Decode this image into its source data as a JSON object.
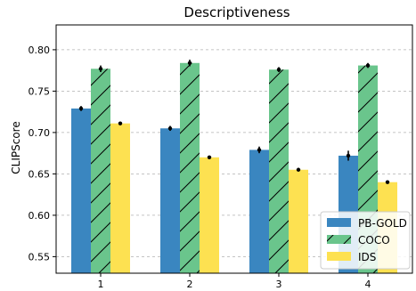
{
  "chart_data": {
    "type": "bar",
    "title": "Descriptiveness",
    "xlabel": "",
    "ylabel": "CLIPScore",
    "categories": [
      "1",
      "2",
      "3",
      "4"
    ],
    "ylim": [
      0.53,
      0.83
    ],
    "yticks": [
      "0.55",
      "0.60",
      "0.65",
      "0.70",
      "0.75",
      "0.80"
    ],
    "grid": true,
    "legend_position": "lower-right",
    "series": [
      {
        "name": "PB-GOLD",
        "color": "#3a86c0",
        "hatch": false,
        "values": [
          0.729,
          0.705,
          0.679,
          0.672
        ],
        "errors": [
          0.003,
          0.003,
          0.004,
          0.006
        ]
      },
      {
        "name": "COCO",
        "color": "#6ac58c",
        "hatch": true,
        "values": [
          0.777,
          0.784,
          0.776,
          0.781
        ],
        "errors": [
          0.004,
          0.004,
          0.003,
          0.003
        ]
      },
      {
        "name": "IDS",
        "color": "#fde151",
        "hatch": false,
        "values": [
          0.711,
          0.67,
          0.655,
          0.64
        ],
        "errors": [
          0.001,
          0.001,
          0.001,
          0.001
        ]
      }
    ]
  }
}
